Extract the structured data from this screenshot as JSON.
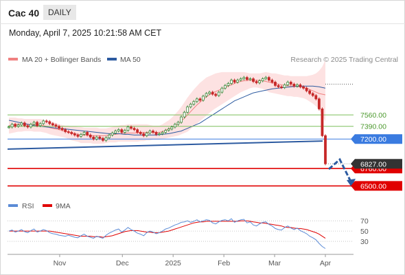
{
  "header": {
    "title": "Cac 40",
    "period": "DAILY",
    "datetime": "Monday, April 7, 2025 10:21:58 AM CET"
  },
  "colors": {
    "bollinger": "#f08080",
    "ma50": "#2c5aa0",
    "bull": "#3c8a3c",
    "bear": "#c62828",
    "resistance_green": "#7bbf5a",
    "support_red": "#e00000",
    "current_blue": "#3a7be0",
    "rsi": "#5b8bd6",
    "rsi_ma": "#e00000",
    "forecast_arrow": "#2c5aa0"
  },
  "chart_data": [
    {
      "type": "candlestick",
      "title": "Cac 40",
      "legend": [
        {
          "name": "MA 20 + Bollinger Bands",
          "color": "#f08080"
        },
        {
          "name": "MA 50",
          "color": "#2c5aa0"
        }
      ],
      "watermark": "Research © 2025 Trading Central",
      "x_ticks": [
        "Nov",
        "Dec",
        "2025",
        "Feb",
        "Mar",
        "Apr"
      ],
      "price_range": [
        6350,
        8250
      ],
      "horizontal_levels": [
        {
          "value": 7560.0,
          "label": "7560.00",
          "style": "resistance",
          "color": "#7bbf5a"
        },
        {
          "value": 7390.0,
          "label": "7390.00",
          "style": "resistance",
          "color": "#7bbf5a"
        },
        {
          "value": 7200.0,
          "label": "7200.00",
          "style": "current",
          "color": "#3a7be0"
        },
        {
          "value": 6760.0,
          "label": "6760.00",
          "style": "support",
          "color": "#e00000"
        },
        {
          "value": 6500.0,
          "label": "6500.00",
          "style": "support",
          "color": "#e00000"
        }
      ],
      "current_price_label": "6827.00",
      "close_series": [
        7380,
        7420,
        7390,
        7410,
        7440,
        7400,
        7380,
        7420,
        7450,
        7400,
        7430,
        7470,
        7460,
        7430,
        7410,
        7390,
        7360,
        7340,
        7310,
        7300,
        7280,
        7260,
        7240,
        7270,
        7300,
        7260,
        7230,
        7200,
        7230,
        7210,
        7180,
        7220,
        7260,
        7290,
        7320,
        7340,
        7300,
        7330,
        7380,
        7360,
        7340,
        7300,
        7280,
        7250,
        7290,
        7320,
        7300,
        7270,
        7280,
        7300,
        7330,
        7350,
        7380,
        7420,
        7450,
        7530,
        7600,
        7680,
        7720,
        7760,
        7800,
        7780,
        7840,
        7880,
        7900,
        7870,
        7850,
        7900,
        7960,
        8000,
        8030,
        8080,
        8050,
        8080,
        8100,
        8120,
        8090,
        8100,
        8060,
        8040,
        8070,
        8100,
        8120,
        8080,
        8050,
        8000,
        7980,
        7970,
        8010,
        8050,
        8020,
        7990,
        8010,
        7980,
        7960,
        7920,
        7880,
        7850,
        7800,
        7650,
        7250,
        6830
      ],
      "ma20_series": [
        7400,
        7410,
        7420,
        7420,
        7420,
        7420,
        7420,
        7415,
        7410,
        7410,
        7405,
        7400,
        7390,
        7370,
        7360,
        7350,
        7340,
        7330,
        7320,
        7300,
        7290,
        7280,
        7270,
        7260,
        7260,
        7260,
        7255,
        7250,
        7250,
        7250,
        7250,
        7250,
        7260,
        7265,
        7270,
        7275,
        7280,
        7285,
        7290,
        7290,
        7290,
        7295,
        7300,
        7300,
        7300,
        7300,
        7300,
        7300,
        7300,
        7310,
        7330,
        7350,
        7370,
        7400,
        7430,
        7470,
        7510,
        7560,
        7610,
        7660,
        7710,
        7750,
        7790,
        7830,
        7860,
        7890,
        7910,
        7930,
        7950,
        7970,
        7990,
        8010,
        8030,
        8050,
        8060,
        8070,
        8075,
        8080,
        8080,
        8080,
        8075,
        8070,
        8060,
        8050,
        8040,
        8030,
        8020,
        8010,
        8000,
        7995,
        7990,
        7990,
        7985,
        7980,
        7970,
        7960,
        7940,
        7920,
        7900,
        7880,
        7870,
        7860
      ],
      "bollinger_upper": [
        7520,
        7520,
        7520,
        7510,
        7510,
        7500,
        7500,
        7500,
        7500,
        7500,
        7500,
        7490,
        7470,
        7460,
        7450,
        7440,
        7420,
        7410,
        7400,
        7400,
        7390,
        7390,
        7380,
        7380,
        7370,
        7370,
        7370,
        7370,
        7370,
        7360,
        7360,
        7360,
        7370,
        7380,
        7390,
        7400,
        7410,
        7410,
        7420,
        7420,
        7420,
        7420,
        7420,
        7420,
        7420,
        7410,
        7400,
        7400,
        7400,
        7420,
        7450,
        7480,
        7520,
        7570,
        7620,
        7680,
        7750,
        7820,
        7880,
        7940,
        7990,
        8040,
        8080,
        8120,
        8140,
        8160,
        8180,
        8190,
        8200,
        8200,
        8200,
        8200,
        8200,
        8200,
        8200,
        8200,
        8190,
        8180,
        8180,
        8180,
        8180,
        8190,
        8200,
        8190,
        8180,
        8180,
        8170,
        8160,
        8150,
        8150,
        8140,
        8140,
        8140,
        8140,
        8140,
        8140,
        8150,
        8160,
        8180,
        8220,
        8280,
        8380
      ],
      "bollinger_lower": [
        7280,
        7290,
        7300,
        7310,
        7310,
        7320,
        7320,
        7320,
        7310,
        7310,
        7310,
        7300,
        7290,
        7270,
        7260,
        7250,
        7240,
        7230,
        7220,
        7200,
        7180,
        7170,
        7160,
        7140,
        7140,
        7140,
        7140,
        7130,
        7130,
        7130,
        7130,
        7140,
        7150,
        7150,
        7150,
        7160,
        7160,
        7160,
        7160,
        7160,
        7160,
        7160,
        7170,
        7170,
        7180,
        7180,
        7190,
        7190,
        7190,
        7200,
        7210,
        7220,
        7230,
        7240,
        7250,
        7270,
        7290,
        7310,
        7350,
        7390,
        7430,
        7470,
        7510,
        7550,
        7590,
        7630,
        7660,
        7690,
        7720,
        7750,
        7780,
        7810,
        7840,
        7870,
        7900,
        7920,
        7940,
        7960,
        7970,
        7970,
        7960,
        7950,
        7930,
        7900,
        7890,
        7880,
        7870,
        7860,
        7850,
        7840,
        7840,
        7830,
        7830,
        7820,
        7810,
        7790,
        7760,
        7730,
        7690,
        7640,
        7560,
        7460
      ],
      "ma50_series": [
        7480,
        7470,
        7460,
        7450,
        7440,
        7430,
        7420,
        7410,
        7400,
        7395,
        7390,
        7385,
        7380,
        7375,
        7370,
        7365,
        7360,
        7355,
        7350,
        7345,
        7340,
        7335,
        7330,
        7325,
        7320,
        7315,
        7310,
        7305,
        7300,
        7295,
        7290,
        7285,
        7280,
        7280,
        7280,
        7280,
        7275,
        7270,
        7270,
        7265,
        7260,
        7260,
        7260,
        7260,
        7260,
        7260,
        7260,
        7260,
        7265,
        7270,
        7275,
        7280,
        7290,
        7300,
        7310,
        7320,
        7340,
        7360,
        7380,
        7400,
        7420,
        7440,
        7470,
        7500,
        7530,
        7560,
        7590,
        7620,
        7650,
        7680,
        7710,
        7740,
        7770,
        7790,
        7810,
        7830,
        7850,
        7870,
        7890,
        7900,
        7910,
        7920,
        7930,
        7940,
        7950,
        7955,
        7960,
        7965,
        7970,
        7975,
        7980,
        7985,
        7985,
        7990,
        7990,
        7990,
        7990,
        7990,
        7985,
        7980,
        7970,
        7960
      ]
    },
    {
      "type": "line",
      "title": "RSI",
      "legend": [
        {
          "name": "RSI",
          "color": "#5b8bd6"
        },
        {
          "name": "9MA",
          "color": "#e00000"
        }
      ],
      "y_ticks": [
        70,
        50,
        30
      ],
      "ylim": [
        10,
        85
      ],
      "rsi_series": [
        50,
        52,
        48,
        50,
        53,
        49,
        47,
        51,
        54,
        48,
        50,
        53,
        51,
        47,
        45,
        44,
        42,
        41,
        40,
        42,
        40,
        38,
        37,
        41,
        44,
        40,
        38,
        36,
        40,
        38,
        36,
        42,
        46,
        49,
        52,
        54,
        48,
        52,
        57,
        53,
        50,
        46,
        44,
        41,
        47,
        50,
        48,
        45,
        47,
        50,
        54,
        56,
        59,
        62,
        64,
        67,
        68,
        70,
        67,
        69,
        72,
        68,
        70,
        72,
        71,
        66,
        64,
        68,
        71,
        72,
        70,
        74,
        67,
        70,
        72,
        73,
        66,
        68,
        62,
        60,
        64,
        67,
        68,
        63,
        60,
        55,
        53,
        52,
        57,
        60,
        56,
        53,
        56,
        51,
        48,
        45,
        40,
        37,
        33,
        26,
        20,
        16
      ],
      "ma9_series": [
        50,
        50,
        50,
        50,
        50,
        50,
        50,
        50,
        50,
        50,
        50,
        50,
        50,
        50,
        49,
        48,
        47,
        46,
        45,
        44,
        43,
        42,
        41,
        40,
        40,
        40,
        40,
        39,
        39,
        39,
        38,
        39,
        40,
        41,
        43,
        45,
        47,
        49,
        50,
        51,
        51,
        51,
        50,
        49,
        48,
        48,
        47,
        47,
        47,
        48,
        49,
        50,
        52,
        54,
        56,
        58,
        60,
        62,
        64,
        66,
        67,
        68,
        68,
        69,
        69,
        69,
        69,
        69,
        69,
        69,
        69,
        69,
        69,
        69,
        70,
        70,
        70,
        69,
        68,
        67,
        66,
        66,
        65,
        64,
        63,
        62,
        61,
        60,
        58,
        57,
        57,
        56,
        55,
        55,
        54,
        53,
        51,
        49,
        47,
        44,
        40,
        36
      ]
    }
  ]
}
